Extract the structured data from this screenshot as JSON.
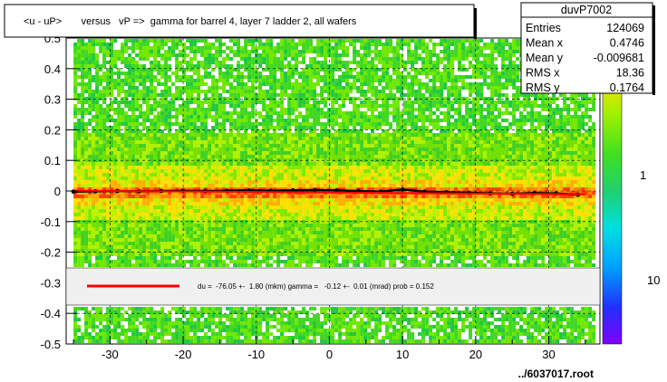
{
  "chart_data": {
    "type": "heatmap",
    "title": "<u - uP>       versus   vP =>  gamma for barrel 4, layer 7 ladder 2, all wafers",
    "xlim": [
      -36,
      37
    ],
    "ylim": [
      -0.5,
      0.5
    ],
    "x_ticks": [
      -30,
      -20,
      -10,
      0,
      10,
      20,
      30
    ],
    "x_tick_labels": [
      "-30",
      "-20",
      "-10",
      "0",
      "10",
      "20",
      "30"
    ],
    "y_ticks": [
      -0.5,
      -0.4,
      -0.3,
      -0.2,
      -0.1,
      0,
      0.1,
      0.2,
      0.3,
      0.4,
      0.5
    ],
    "y_tick_labels": [
      "-0.5",
      "-0.4",
      "-0.3",
      "-0.2",
      "-0.1",
      "0",
      "0.1",
      "0.2",
      "0.3",
      "0.4",
      "0.5"
    ],
    "grid": true,
    "colorbar": {
      "scale": "log",
      "tick_labels": [
        "1",
        "10"
      ]
    },
    "stats": {
      "name": "duvP7002",
      "rows": [
        {
          "label": "Entries",
          "value": "124069"
        },
        {
          "label": "Mean x",
          "value": "0.4746"
        },
        {
          "label": "Mean y",
          "value": "-0.009681"
        },
        {
          "label": "RMS x",
          "value": "18.36"
        },
        {
          "label": "RMS y",
          "value": "0.1764"
        }
      ]
    },
    "fit_legend": "du =  -76.05 +-  1.80 (mkm) gamma =   -0.12 +-  0.01 (mrad) prob = 0.152",
    "profile": {
      "x": [
        -35,
        -32,
        -29,
        -26,
        -23,
        -20,
        -17,
        -14,
        -11,
        -8,
        -5,
        -2,
        1,
        4,
        7,
        10,
        13,
        16,
        19,
        22,
        25,
        28,
        31,
        34
      ],
      "y": [
        -0.002,
        -0.001,
        0.0,
        -0.001,
        0.0,
        0.001,
        0.0,
        0.001,
        0.002,
        0.001,
        0.002,
        0.003,
        0.002,
        0.0,
        -0.002,
        0.005,
        -0.002,
        -0.004,
        -0.006,
        -0.008,
        -0.009,
        -0.007,
        -0.008,
        -0.012
      ]
    },
    "fit_line": {
      "x": [
        -35,
        35
      ],
      "y": [
        0.001,
        -0.011
      ]
    }
  },
  "footer": "../6037017.root",
  "colors": {
    "line": "#ff0000",
    "markers": "#000000",
    "legend_bg": "#f0f0f0"
  }
}
